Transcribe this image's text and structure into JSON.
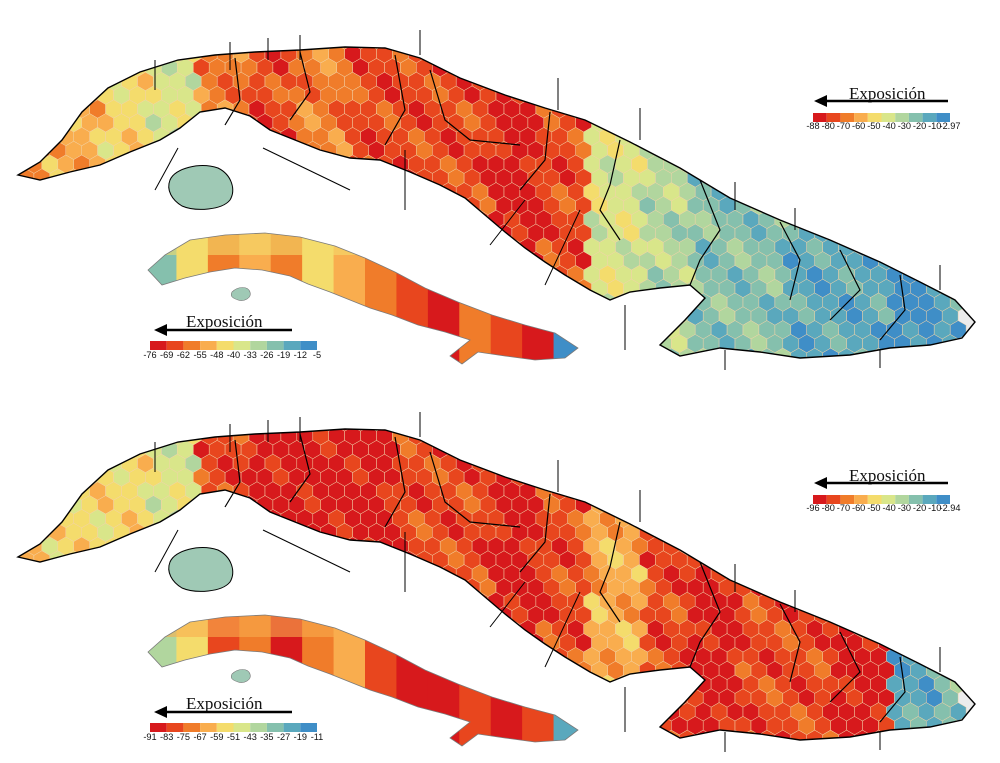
{
  "colors": {
    "scale": [
      "#d7191c",
      "#e8461e",
      "#f07c2a",
      "#f9ad4e",
      "#f4dc6c",
      "#d9e68a",
      "#b1d69e",
      "#85c0ad",
      "#5aa8bd",
      "#3f8ec7"
    ],
    "land_outline": "#000000",
    "water_white": "#ffffff",
    "lagoon_gray": "#ececec"
  },
  "panels": [
    {
      "legend_large": {
        "title": "Exposición",
        "ticks": [
          "-88",
          "-80",
          "-70",
          "-60",
          "-50",
          "-40",
          "-30",
          "-20",
          "-10",
          "-2.97"
        ]
      },
      "legend_small": {
        "title": "Exposición",
        "ticks": [
          "-76",
          "-69",
          "-62",
          "-55",
          "-48",
          "-40",
          "-33",
          "-26",
          "-19",
          "-12",
          "-5"
        ]
      },
      "hex_pattern": [
        2,
        3,
        4,
        5,
        2,
        1,
        2,
        1,
        1,
        1,
        0,
        1,
        5,
        6,
        7,
        7,
        8,
        8,
        9,
        8
      ]
    },
    {
      "legend_large": {
        "title": "Exposición",
        "ticks": [
          "-96",
          "-80",
          "-70",
          "-60",
          "-50",
          "-40",
          "-30",
          "-20",
          "-10",
          "-2.94"
        ]
      },
      "legend_small": {
        "title": "Exposición",
        "ticks": [
          "-91",
          "-83",
          "-75",
          "-67",
          "-59",
          "-51",
          "-43",
          "-35",
          "-27",
          "-19",
          "-11"
        ]
      },
      "hex_pattern": [
        3,
        4,
        4,
        5,
        1,
        0,
        0,
        0,
        1,
        1,
        0,
        1,
        3,
        1,
        0,
        1,
        1,
        0,
        8,
        7
      ]
    }
  ]
}
